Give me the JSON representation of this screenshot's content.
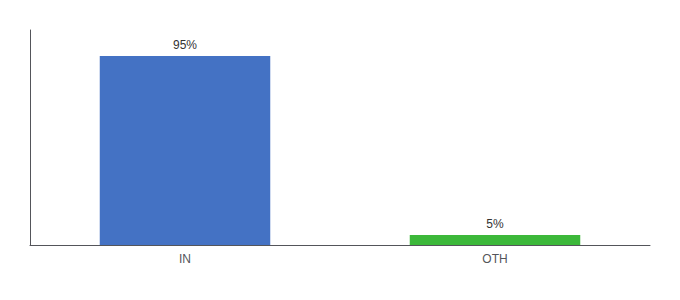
{
  "chart_data": {
    "type": "bar",
    "categories": [
      "IN",
      "OTH"
    ],
    "values": [
      95,
      5
    ],
    "value_labels": [
      "95%",
      "5%"
    ],
    "colors": [
      "#4472c4",
      "#3cb83a"
    ],
    "ylim": [
      0,
      108
    ],
    "grid": false,
    "data_labels": true,
    "tick_labels": "x"
  }
}
